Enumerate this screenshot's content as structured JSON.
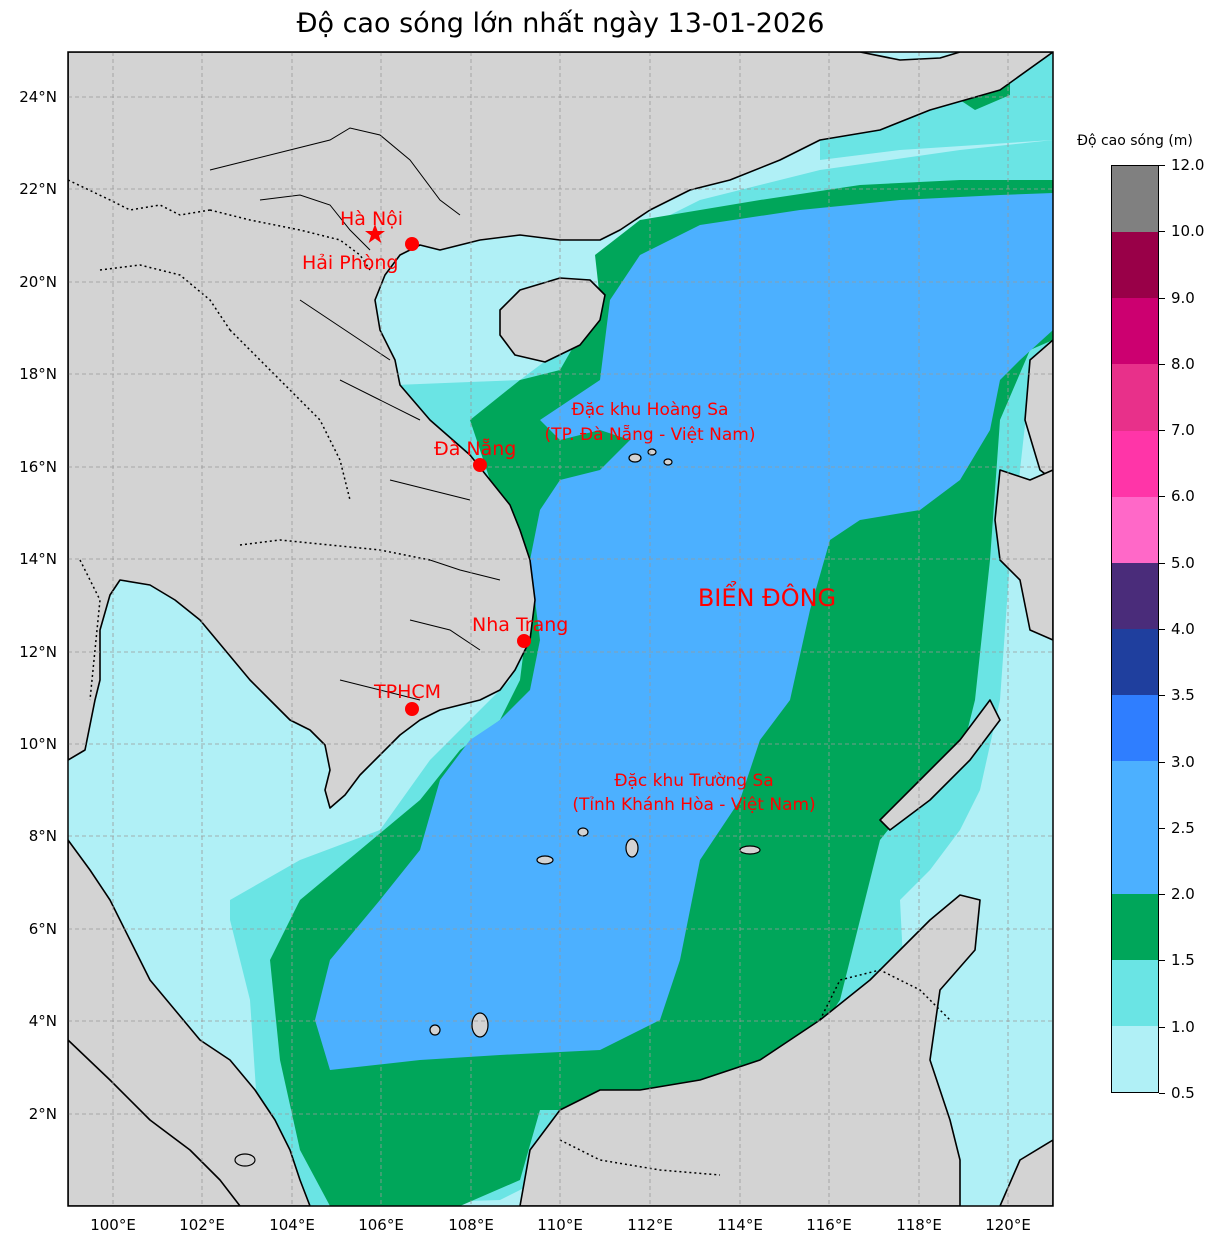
{
  "title": "Độ cao sóng lớn nhất ngày 13-01-2026",
  "colorbar": {
    "title": "Độ cao sóng (m)",
    "bins": [
      {
        "min": 0.5,
        "max": 1.0,
        "color": "#b0f0f6"
      },
      {
        "min": 1.0,
        "max": 1.5,
        "color": "#6ae4e4"
      },
      {
        "min": 1.5,
        "max": 2.0,
        "color": "#00a65a"
      },
      {
        "min": 2.0,
        "max": 3.0,
        "color": "#4cb0ff"
      },
      {
        "min": 3.0,
        "max": 3.5,
        "color": "#2f7eff"
      },
      {
        "min": 3.5,
        "max": 4.0,
        "color": "#1f3f9e"
      },
      {
        "min": 4.0,
        "max": 5.0,
        "color": "#4a2c7a"
      },
      {
        "min": 5.0,
        "max": 6.0,
        "color": "#ff68c8"
      },
      {
        "min": 6.0,
        "max": 7.0,
        "color": "#ff35a8"
      },
      {
        "min": 7.0,
        "max": 8.0,
        "color": "#e8308a"
      },
      {
        "min": 8.0,
        "max": 9.0,
        "color": "#cc0070"
      },
      {
        "min": 9.0,
        "max": 10.0,
        "color": "#990048"
      },
      {
        "min": 10.0,
        "max": 12.0,
        "color": "#808080"
      }
    ],
    "tick_labels": [
      "0.5",
      "1.0",
      "1.5",
      "2.0",
      "2.5",
      "3.0",
      "3.5",
      "4.0",
      "5.0",
      "6.0",
      "7.0",
      "8.0",
      "9.0",
      "10.0",
      "12.0"
    ]
  },
  "axes": {
    "lon_range": [
      99.0,
      121.0
    ],
    "lat_range": [
      0.0,
      25.0
    ],
    "lon_ticks": [
      "100°E",
      "102°E",
      "104°E",
      "106°E",
      "108°E",
      "110°E",
      "112°E",
      "114°E",
      "116°E",
      "118°E",
      "120°E"
    ],
    "lat_ticks": [
      "2°N",
      "4°N",
      "6°N",
      "8°N",
      "10°N",
      "12°N",
      "14°N",
      "16°N",
      "18°N",
      "20°N",
      "22°N",
      "24°N"
    ],
    "grid": "dashed"
  },
  "map": {
    "land_color": "#d3d3d3",
    "sea_color": "#b0f0f6"
  },
  "cities": [
    {
      "name": "Hà Nội",
      "lon": 105.85,
      "lat": 21.03,
      "marker": "star"
    },
    {
      "name": "Hải Phòng",
      "lon": 106.68,
      "lat": 20.86,
      "marker": "circle"
    },
    {
      "name": "Đà Nẵng",
      "lon": 108.2,
      "lat": 16.07,
      "marker": "circle"
    },
    {
      "name": "Nha Trang",
      "lon": 109.19,
      "lat": 12.24,
      "marker": "circle"
    },
    {
      "name": "TPHCM",
      "lon": 106.63,
      "lat": 10.82,
      "marker": "circle"
    }
  ],
  "annotations": {
    "paracel_line1": "Đặc khu Hoàng Sa",
    "paracel_line2": "(TP. Đà Nẵng - Việt Nam)",
    "spratly_line1": "Đặc khu Trường Sa",
    "spratly_line2": "(Tỉnh Khánh Hòa - Việt Nam)",
    "sea_name": "BIỂN ĐÔNG"
  }
}
